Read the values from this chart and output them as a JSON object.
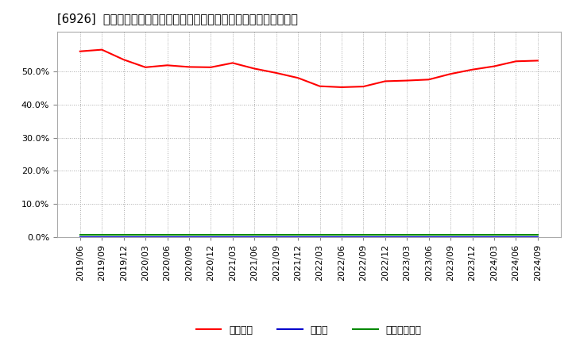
{
  "title": "[6926]  自己資本、のれん、繰延税金資産の総資産に対する比率の推移",
  "legend_labels": [
    "自己資本",
    "のれん",
    "繰延税金資産"
  ],
  "line_colors": [
    "#ff0000",
    "#0000cc",
    "#008800"
  ],
  "x_labels": [
    "2019/06",
    "2019/09",
    "2019/12",
    "2020/03",
    "2020/06",
    "2020/09",
    "2020/12",
    "2021/03",
    "2021/06",
    "2021/09",
    "2021/12",
    "2022/03",
    "2022/06",
    "2022/09",
    "2022/12",
    "2023/03",
    "2023/06",
    "2023/09",
    "2023/12",
    "2024/03",
    "2024/06",
    "2024/09"
  ],
  "jikoshihon": [
    56.0,
    56.5,
    53.5,
    51.2,
    51.8,
    51.3,
    51.2,
    52.5,
    50.8,
    49.5,
    48.0,
    45.5,
    45.2,
    45.4,
    47.0,
    47.2,
    47.5,
    49.2,
    50.5,
    51.5,
    53.0,
    53.2
  ],
  "noren": [
    0.0,
    0.0,
    0.0,
    0.0,
    0.0,
    0.0,
    0.0,
    0.0,
    0.0,
    0.0,
    0.0,
    0.0,
    0.0,
    0.0,
    0.0,
    0.0,
    0.0,
    0.0,
    0.0,
    0.0,
    0.0,
    0.0
  ],
  "kuenzeichkinshisan": [
    0.8,
    0.8,
    0.8,
    0.8,
    0.8,
    0.8,
    0.8,
    0.8,
    0.8,
    0.8,
    0.8,
    0.8,
    0.8,
    0.8,
    0.8,
    0.8,
    0.8,
    0.8,
    0.8,
    0.8,
    0.8,
    0.8
  ],
  "ylim": [
    0.0,
    62.0
  ],
  "yticks": [
    0.0,
    10.0,
    20.0,
    30.0,
    40.0,
    50.0
  ],
  "background_color": "#ffffff",
  "plot_bg_color": "#ffffff",
  "grid_color": "#aaaaaa",
  "title_fontsize": 10.5,
  "legend_fontsize": 9,
  "tick_fontsize": 8
}
